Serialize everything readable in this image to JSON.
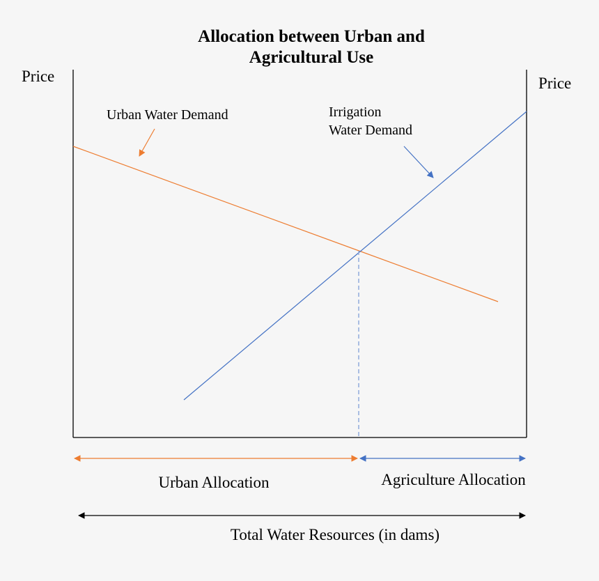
{
  "title": {
    "line1": "Allocation between Urban and",
    "line2": "Agricultural Use"
  },
  "axes": {
    "left_label": "Price",
    "right_label": "Price"
  },
  "curves": {
    "urban": {
      "label": "Urban Water Demand",
      "color": "#ed7d31"
    },
    "irrigation": {
      "label_line1": "Irrigation",
      "label_line2": "Water Demand",
      "color": "#4472c4"
    }
  },
  "allocation": {
    "urban_label": "Urban Allocation",
    "agriculture_label": "Agriculture Allocation",
    "urban_color": "#ed7d31",
    "agriculture_color": "#4472c4"
  },
  "total": {
    "label": "Total Water Resources (in dams)",
    "color": "#000000"
  }
}
